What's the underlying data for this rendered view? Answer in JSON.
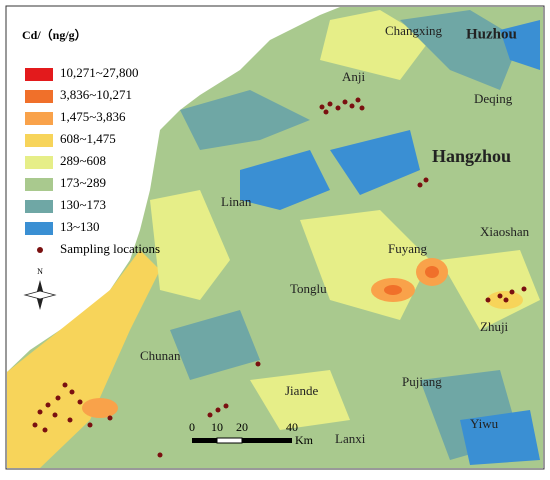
{
  "legend": {
    "title": "Cd/（ng/g）",
    "items": [
      {
        "label": "10,271~27,800",
        "color": "#e31a1c"
      },
      {
        "label": "3,836~10,271",
        "color": "#f0702a"
      },
      {
        "label": "1,475~3,836",
        "color": "#f9a24a"
      },
      {
        "label": "608~1,475",
        "color": "#f7d45a"
      },
      {
        "label": "289~608",
        "color": "#e6ee88"
      },
      {
        "label": "173~289",
        "color": "#a9c98e"
      },
      {
        "label": "130~173",
        "color": "#6fa7a5"
      },
      {
        "label": "13~130",
        "color": "#3a8fd3"
      }
    ],
    "sampling": "Sampling locations"
  },
  "places": [
    "Changxing",
    "Huzhou",
    "Anji",
    "Deqing",
    "Hangzhou",
    "Linan",
    "Xiaoshan",
    "Fuyang",
    "Tonglu",
    "Zhuji",
    "Chunan",
    "Jiande",
    "Pujiang",
    "Yiwu",
    "Lanxi"
  ],
  "north": "N",
  "scale_bar": {
    "ticks": [
      "0",
      "10",
      "20",
      "40"
    ],
    "unit": "Km"
  }
}
